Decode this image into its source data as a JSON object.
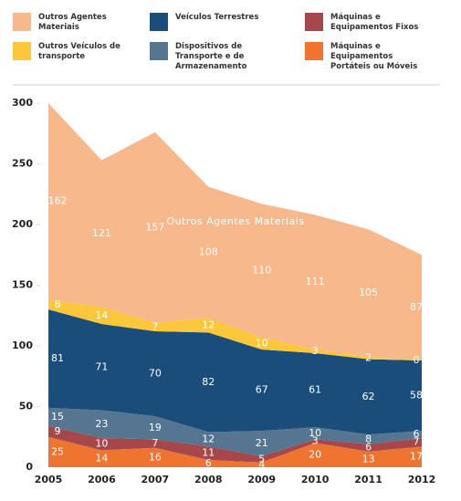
{
  "chart_data": {
    "type": "stacked-area",
    "x": [
      2005,
      2006,
      2007,
      2008,
      2009,
      2010,
      2011,
      2012
    ],
    "xlim": [
      2005,
      2012
    ],
    "xticks": [
      2005,
      2006,
      2007,
      2008,
      2009,
      2010,
      2011,
      2012
    ],
    "ylim": [
      0,
      300
    ],
    "yticks": [
      0,
      50,
      100,
      150,
      200,
      250,
      300
    ],
    "series": [
      {
        "name": "Máquinas e Equipamentos Portáteis ou Móveis",
        "color": "#ef7430",
        "values": [
          25,
          14,
          16,
          6,
          4,
          20,
          13,
          17
        ]
      },
      {
        "name": "Máquinas e Equipamentos Fixos",
        "color": "#a5474b",
        "values": [
          9,
          10,
          7,
          11,
          5,
          3,
          6,
          7
        ]
      },
      {
        "name": "Dispositivos de Transporte e de Armazenamento",
        "color": "#557590",
        "values": [
          15,
          23,
          19,
          12,
          21,
          10,
          8,
          6
        ]
      },
      {
        "name": "Veículos Terrestres",
        "color": "#1b4d7b",
        "values": [
          81,
          71,
          70,
          82,
          67,
          61,
          62,
          58
        ]
      },
      {
        "name": "Outros Veículos de transporte",
        "color": "#fcc73b",
        "values": [
          8,
          14,
          7,
          12,
          10,
          3,
          2,
          0
        ]
      },
      {
        "name": "Outros Agentes Materiais",
        "color": "#f7b88c",
        "values": [
          162,
          121,
          157,
          108,
          110,
          111,
          105,
          87
        ]
      }
    ],
    "legend_order": [
      5,
      3,
      1,
      4,
      2,
      0
    ]
  }
}
